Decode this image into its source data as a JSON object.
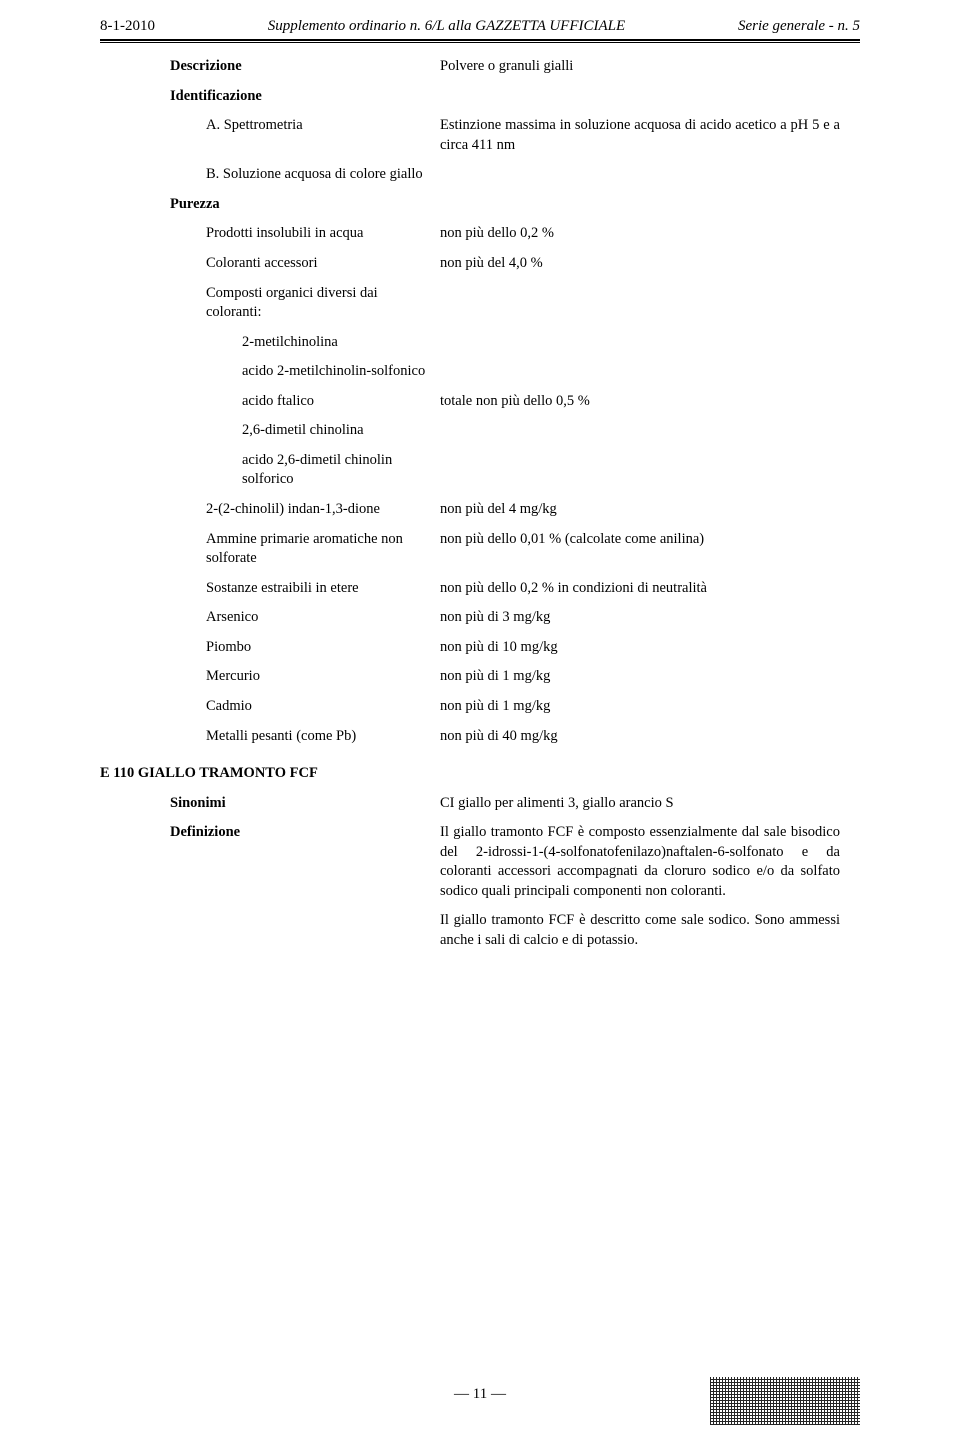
{
  "header": {
    "left": "8-1-2010",
    "center": "Supplemento ordinario n. 6/L alla GAZZETTA UFFICIALE",
    "right": "Serie generale - n. 5"
  },
  "rows": [
    {
      "label": "Descrizione",
      "labelClass": "bold",
      "value": "Polvere o granuli gialli"
    },
    {
      "label": "Identificazione",
      "labelClass": "bold",
      "value": ""
    },
    {
      "label": "A. Spettrometria",
      "labelClass": "indent1",
      "value": "Estinzione massima in soluzione acquosa di acido acetico a pH 5 e a circa 411 nm"
    },
    {
      "label": "B. Soluzione acquosa di colore giallo",
      "labelClass": "indent1",
      "value": ""
    },
    {
      "label": "Purezza",
      "labelClass": "bold",
      "value": ""
    },
    {
      "label": "Prodotti insolubili in acqua",
      "labelClass": "indent1",
      "value": "non più dello 0,2 %"
    },
    {
      "label": "Coloranti accessori",
      "labelClass": "indent1",
      "value": "non più del 4,0 %"
    },
    {
      "label": "Composti organici diversi dai coloranti:",
      "labelClass": "indent1",
      "value": ""
    },
    {
      "label": "2-metilchinolina",
      "labelClass": "indent2",
      "value": ""
    },
    {
      "label": "acido 2-metilchinolin-solfonico",
      "labelClass": "indent2",
      "value": ""
    },
    {
      "label": "acido ftalico",
      "labelClass": "indent2",
      "value": "totale non più dello 0,5 %"
    },
    {
      "label": "2,6-dimetil chinolina",
      "labelClass": "indent2",
      "value": ""
    },
    {
      "label": "acido 2,6-dimetil chinolin solforico",
      "labelClass": "indent2",
      "value": ""
    },
    {
      "label": "2-(2-chinolil) indan-1,3-dione",
      "labelClass": "indent1",
      "value": "non più del 4 mg/kg"
    },
    {
      "label": "Ammine primarie aromatiche non solforate",
      "labelClass": "indent1",
      "value": "non più dello 0,01 % (calcolate come anilina)"
    },
    {
      "label": "Sostanze estraibili in etere",
      "labelClass": "indent1",
      "value": "non più dello 0,2 % in condizioni di neutralità"
    },
    {
      "label": "Arsenico",
      "labelClass": "indent1",
      "value": "non più di 3 mg/kg"
    },
    {
      "label": "Piombo",
      "labelClass": "indent1",
      "value": "non più di 10 mg/kg"
    },
    {
      "label": "Mercurio",
      "labelClass": "indent1",
      "value": "non più di 1 mg/kg"
    },
    {
      "label": "Cadmio",
      "labelClass": "indent1",
      "value": "non più di 1 mg/kg"
    },
    {
      "label": "Metalli pesanti (come Pb)",
      "labelClass": "indent1",
      "value": "non più di 40 mg/kg"
    }
  ],
  "sectionHeading": "E 110 GIALLO TRAMONTO FCF",
  "rows2": [
    {
      "label": "Sinonimi",
      "labelClass": "bold",
      "value": "CI giallo per alimenti 3, giallo arancio S"
    },
    {
      "label": "Definizione",
      "labelClass": "bold",
      "value": "Il giallo tramonto FCF è composto essenzialmente dal sale bisodico del 2-idrossi-1-(4-solfonatofenilazo)naftalen-6-solfonato e da coloranti accessori accompagnati da cloruro sodico e/o da solfato sodico quali principali componenti non coloranti."
    },
    {
      "label": "",
      "labelClass": "",
      "value": "Il giallo tramonto FCF è descritto come sale sodico. Sono ammessi anche i sali di calcio e di potassio."
    }
  ],
  "pageNumber": "— 11 —"
}
